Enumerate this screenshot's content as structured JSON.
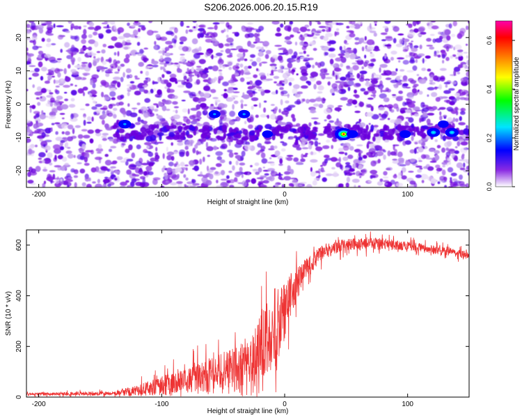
{
  "title": "S206.2026.006.20.15.R19",
  "chart_data": [
    {
      "type": "heatmap",
      "xlabel": "Height of straight line (km)",
      "ylabel": "Frequency (Hz)",
      "xlim": [
        -210,
        150
      ],
      "ylim": [
        -25,
        25
      ],
      "xticks": [
        -200,
        -100,
        0,
        100
      ],
      "yticks": [
        -20,
        -10,
        0,
        10,
        20
      ],
      "colorbar": {
        "label": "Normalized spectral amplitude",
        "range": [
          0,
          0.68
        ],
        "ticks": [
          "0.0",
          "0.2",
          "0.4",
          "0.6"
        ],
        "colors": [
          "#ffffff",
          "#8a2be2",
          "#0000ff",
          "#00e5ff",
          "#00ff00",
          "#ffff00",
          "#ff8000",
          "#ff0000",
          "#ff00aa"
        ]
      },
      "signal_band_hz": -8.5,
      "hot_spots": [
        {
          "x": -130,
          "y": -6,
          "amp": 0.25
        },
        {
          "x": -57,
          "y": -3,
          "amp": 0.2
        },
        {
          "x": -33,
          "y": -3,
          "amp": 0.22
        },
        {
          "x": -14,
          "y": -9,
          "amp": 0.15
        },
        {
          "x": 48,
          "y": -9,
          "amp": 0.55
        },
        {
          "x": 55,
          "y": -9,
          "amp": 0.18
        },
        {
          "x": 98,
          "y": -9,
          "amp": 0.18
        },
        {
          "x": 121,
          "y": -8.5,
          "amp": 0.28
        },
        {
          "x": 129,
          "y": -6,
          "amp": 0.15
        },
        {
          "x": 136,
          "y": -8.5,
          "amp": 0.3
        }
      ]
    },
    {
      "type": "line",
      "xlabel": "Height of straight line (km)",
      "ylabel": "SNR (10 * v/v)",
      "xlim": [
        -210,
        150
      ],
      "ylim": [
        0,
        660
      ],
      "xticks": [
        -200,
        -100,
        0,
        100
      ],
      "yticks": [
        0,
        200,
        400,
        600
      ],
      "color": "#ee3333",
      "envelope": [
        {
          "x": -210,
          "base": 12,
          "amp": 12
        },
        {
          "x": -140,
          "base": 15,
          "amp": 15
        },
        {
          "x": -120,
          "base": 25,
          "amp": 45
        },
        {
          "x": -100,
          "base": 45,
          "amp": 75
        },
        {
          "x": -80,
          "base": 70,
          "amp": 110
        },
        {
          "x": -60,
          "base": 90,
          "amp": 140
        },
        {
          "x": -40,
          "base": 110,
          "amp": 170
        },
        {
          "x": -25,
          "base": 150,
          "amp": 230
        },
        {
          "x": -15,
          "base": 230,
          "amp": 330
        },
        {
          "x": -5,
          "base": 300,
          "amp": 300
        },
        {
          "x": 5,
          "base": 400,
          "amp": 180
        },
        {
          "x": 15,
          "base": 490,
          "amp": 90
        },
        {
          "x": 30,
          "base": 570,
          "amp": 60
        },
        {
          "x": 50,
          "base": 605,
          "amp": 50
        },
        {
          "x": 80,
          "base": 605,
          "amp": 45
        },
        {
          "x": 110,
          "base": 590,
          "amp": 35
        },
        {
          "x": 150,
          "base": 560,
          "amp": 30
        }
      ]
    }
  ]
}
